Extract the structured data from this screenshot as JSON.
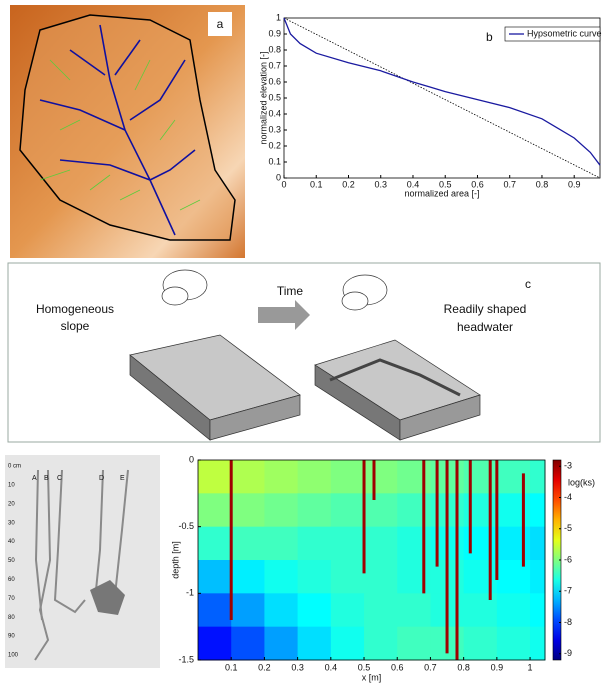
{
  "panel_a": {
    "label": "a"
  },
  "panel_c": {
    "label": "c",
    "left": [
      "Homogeneous",
      "slope"
    ],
    "arrow": "Time",
    "right": [
      "Readily shaped",
      "headwater"
    ]
  },
  "photo": {
    "depth_labels": [
      "0 cm",
      "10",
      "20",
      "30",
      "40",
      "50",
      "60",
      "70",
      "80",
      "90",
      "100"
    ],
    "root_labels": [
      "A",
      "B",
      "C",
      "D",
      "E"
    ]
  },
  "chart_data": [
    {
      "type": "line",
      "label": "b",
      "xlabel": "normalized area [-]",
      "ylabel": "normalized elevation [-]",
      "x": [
        0,
        0.02,
        0.05,
        0.1,
        0.2,
        0.3,
        0.4,
        0.45,
        0.5,
        0.6,
        0.7,
        0.8,
        0.9,
        0.95,
        0.98
      ],
      "series": [
        {
          "name": "Hypsometric curve",
          "color": "#1a1aa0",
          "values": [
            1,
            0.9,
            0.84,
            0.78,
            0.72,
            0.67,
            0.6,
            0.57,
            0.54,
            0.49,
            0.44,
            0.37,
            0.25,
            0.16,
            0.08
          ]
        }
      ],
      "xlim": [
        0,
        0.98
      ],
      "ylim": [
        0,
        1
      ],
      "xticks": [
        0,
        0.1,
        0.2,
        0.3,
        0.4,
        0.5,
        0.6,
        0.7,
        0.8,
        0.9
      ],
      "yticks": [
        0,
        0.1,
        0.2,
        0.3,
        0.4,
        0.5,
        0.6,
        0.7,
        0.8,
        0.9,
        1
      ],
      "legend": "upper right"
    },
    {
      "type": "heatmap",
      "xlabel": "x [m]",
      "ylabel": "depth [m]",
      "colormap": "jet",
      "clim": [
        -9.2,
        -2.8
      ],
      "xbins": [
        0,
        0.1,
        0.2,
        0.3,
        0.4,
        0.5,
        0.6,
        0.7,
        0.8,
        0.9,
        1.0,
        1.045
      ],
      "ybins": [
        0,
        -0.25,
        -0.5,
        -0.75,
        -1,
        -1.25,
        -1.5
      ],
      "values": [
        [
          -5.6,
          -5.7,
          -5.8,
          -5.9,
          -6.0,
          -6.0,
          -6.1,
          -6.2,
          -6.3,
          -6.4,
          -6.5
        ],
        [
          -6.0,
          -6.0,
          -6.1,
          -6.2,
          -6.3,
          -6.3,
          -6.4,
          -6.5,
          -6.6,
          -6.7,
          -6.8
        ],
        [
          -6.5,
          -6.4,
          -6.4,
          -6.5,
          -6.5,
          -6.5,
          -6.6,
          -6.7,
          -6.8,
          -6.9,
          -7.0
        ],
        [
          -7.2,
          -6.9,
          -6.7,
          -6.6,
          -6.5,
          -6.5,
          -6.6,
          -6.6,
          -6.7,
          -6.8,
          -6.9
        ],
        [
          -7.8,
          -7.4,
          -7.0,
          -6.8,
          -6.6,
          -6.5,
          -6.5,
          -6.6,
          -6.6,
          -6.7,
          -6.8
        ],
        [
          -8.3,
          -7.9,
          -7.4,
          -7.0,
          -6.7,
          -6.5,
          -6.4,
          -6.4,
          -6.5,
          -6.6,
          -6.7
        ]
      ],
      "macropores": {
        "value": -3,
        "x": [
          0.1,
          0.5,
          0.53,
          0.68,
          0.72,
          0.75,
          0.78,
          0.82,
          0.88,
          0.9,
          0.98
        ],
        "top": [
          0,
          0,
          0,
          0,
          0,
          0,
          0,
          0,
          0,
          0,
          -0.1
        ],
        "bottom": [
          -1.2,
          -0.85,
          -0.3,
          -1.0,
          -0.8,
          -1.45,
          -1.5,
          -0.7,
          -1.05,
          -0.9,
          -0.8
        ]
      },
      "xlim": [
        0,
        1.045
      ],
      "ylim": [
        -1.5,
        0
      ],
      "xticks": [
        0.1,
        0.2,
        0.3,
        0.4,
        0.5,
        0.6,
        0.7,
        0.8,
        0.9,
        1
      ],
      "yticks": [
        0,
        -0.5,
        -1,
        -1.5
      ],
      "cbar_ticks": [
        -3,
        -4,
        -5,
        -6,
        -7,
        -8,
        -9
      ],
      "cbar_label": "log(ks)"
    }
  ]
}
